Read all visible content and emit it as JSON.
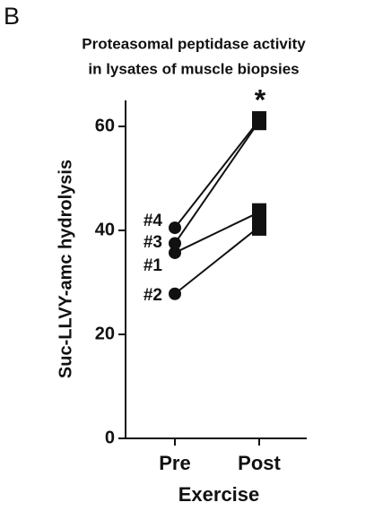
{
  "chart_data": {
    "type": "line",
    "panel_label": "B",
    "title": [
      "Proteasomal peptidase activity",
      "in lysates of muscle biopsies"
    ],
    "annotation": "*",
    "y_label": "Suc-LLVY-amc hydrolysis",
    "x_label": "Exercise",
    "categories": [
      "Pre",
      "Post"
    ],
    "series": [
      {
        "name": "#4",
        "color": "#111111",
        "values": [
          40.5,
          61.2
        ]
      },
      {
        "name": "#3",
        "color": "#111111",
        "values": [
          37.5,
          61.0
        ]
      },
      {
        "name": "#1",
        "color": "#111111",
        "values": [
          35.7,
          43.5
        ]
      },
      {
        "name": "#2",
        "color": "#111111",
        "values": [
          27.8,
          40.7
        ]
      }
    ],
    "ylim": [
      0,
      65
    ],
    "yticks": [
      0,
      20,
      40,
      60
    ],
    "grid": false
  }
}
